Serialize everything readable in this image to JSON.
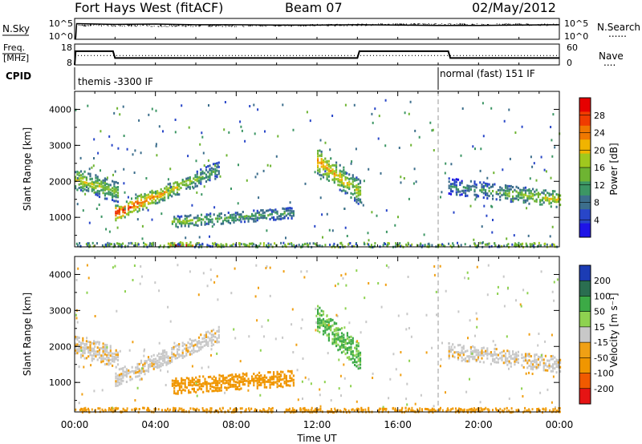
{
  "header": {
    "station": "Fort Hays West (fitACF)",
    "beam": "Beam 07",
    "date": "02/May/2012"
  },
  "colors": {
    "frame": "#000000",
    "dashed_line": "#9a9a9a"
  },
  "nsky_panel": {
    "left_label": "N.Sky",
    "right_label": "N.Search",
    "right_legend": "......",
    "y_ticks": [
      "10^5",
      "10^0"
    ],
    "right_ticks": [
      "10^5",
      "10^0"
    ]
  },
  "freq_panel": {
    "left_label_line1": "Freq.",
    "left_label_line2": "[MHz]",
    "right_label": "Nave",
    "right_legend": "....",
    "y_ticks": [
      "18",
      "8"
    ],
    "right_ticks": [
      "60",
      "0"
    ]
  },
  "cpid": {
    "label": "CPID",
    "mode1": "themis -3300 IF",
    "mode2": "normal (fast) 151 IF",
    "switch_hour": 18.0
  },
  "power_colorbar": {
    "title": "Power [dB]",
    "ticks": [
      "28",
      "24",
      "20",
      "16",
      "12",
      "8",
      "4"
    ]
  },
  "velocity_colorbar": {
    "title": "Velocity [m s⁻¹]",
    "ticks": [
      "200",
      "100",
      "50",
      "15",
      "-15",
      "-50",
      "-100",
      "-200"
    ]
  },
  "range_axis": {
    "label": "Slant Range [km]",
    "ticks": [
      "1000",
      "2000",
      "3000",
      "4000"
    ]
  },
  "time_axis": {
    "label": "Time UT",
    "ticks": [
      "00:00",
      "04:00",
      "08:00",
      "12:00",
      "16:00",
      "20:00",
      "00:00"
    ]
  },
  "chart_data": [
    {
      "type": "line",
      "panel": "sky_noise",
      "x_range_hours": [
        0,
        24
      ],
      "series": [
        {
          "x": [
            0,
            0.05,
            0.1,
            2,
            4,
            6,
            8,
            10,
            12,
            14,
            16,
            18,
            20,
            22,
            24
          ],
          "log10_values": [
            0,
            0,
            4.2,
            4.0,
            4.1,
            3.9,
            3.9,
            3.8,
            3.8,
            3.9,
            3.8,
            3.7,
            3.7,
            3.8,
            3.9
          ]
        }
      ]
    },
    {
      "type": "line",
      "panel": "frequency",
      "x_range_hours": [
        0,
        24
      ],
      "ylim_mhz": [
        8,
        18
      ],
      "series": [
        {
          "x": [
            0,
            0.05,
            1.9,
            2.0,
            14.0,
            14.1,
            18.5,
            18.6,
            24
          ],
          "freq_mhz": [
            8,
            14.6,
            14.6,
            11.3,
            11.3,
            14.6,
            14.6,
            11.3,
            11.3
          ]
        },
        {
          "x": [
            0,
            24
          ],
          "nave": [
            27,
            27
          ]
        }
      ]
    },
    {
      "type": "heatmap",
      "panel": "power",
      "x_range_hours": [
        0,
        24
      ],
      "ylim_km": [
        180,
        4500
      ],
      "colorbar_db": [
        0,
        30
      ],
      "regions": [
        {
          "t": [
            0.0,
            2.1
          ],
          "r0": 2100,
          "r1": 1720,
          "thick": 330,
          "p0": 18,
          "p1": 14,
          "density": 0.95
        },
        {
          "t": [
            2.0,
            7.1
          ],
          "r0": 1140,
          "r1": 2360,
          "thick": 240,
          "p0": 28,
          "p1": 10,
          "density": 0.85
        },
        {
          "t": [
            4.8,
            10.8
          ],
          "r0": 900,
          "r1": 1150,
          "thick": 200,
          "p0": 14,
          "p1": 10,
          "density": 0.8
        },
        {
          "t": [
            12.0,
            14.1
          ],
          "r0": 2600,
          "r1": 1720,
          "thick": 340,
          "p0": 22,
          "p1": 16,
          "density": 0.9
        },
        {
          "t": [
            18.5,
            24.0
          ],
          "r0": 1900,
          "r1": 1520,
          "thick": 230,
          "p0": 8,
          "p1": 18,
          "density": 0.75
        },
        {
          "t": [
            4.6,
            5.8
          ],
          "r0": 240,
          "r1": 260,
          "thick": 90,
          "p0": 28,
          "p1": 26,
          "density": 0.9
        }
      ]
    },
    {
      "type": "heatmap",
      "panel": "velocity",
      "x_range_hours": [
        0,
        24
      ],
      "ylim_km": [
        180,
        4500
      ],
      "colorbar_ms": [
        -250,
        250
      ],
      "regions": [
        {
          "t": [
            0.0,
            2.1
          ],
          "r0": 2050,
          "r1": 1720,
          "thick": 330,
          "v": -8,
          "density": 0.95
        },
        {
          "t": [
            2.0,
            7.1
          ],
          "r0": 1140,
          "r1": 2360,
          "thick": 260,
          "v": -5,
          "density": 0.85
        },
        {
          "t": [
            4.8,
            10.8
          ],
          "r0": 930,
          "r1": 1150,
          "thick": 260,
          "v": -60,
          "density": 0.85
        },
        {
          "t": [
            12.0,
            14.1
          ],
          "r0": 2800,
          "r1": 1720,
          "thick": 340,
          "v": 35,
          "density": 0.9
        },
        {
          "t": [
            18.5,
            24.0
          ],
          "r0": 1900,
          "r1": 1520,
          "thick": 240,
          "v": -5,
          "density": 0.75
        },
        {
          "t": [
            0.0,
            24.0
          ],
          "r0": 240,
          "r1": 240,
          "thick": 100,
          "v": -60,
          "density": 0.12
        }
      ]
    }
  ]
}
